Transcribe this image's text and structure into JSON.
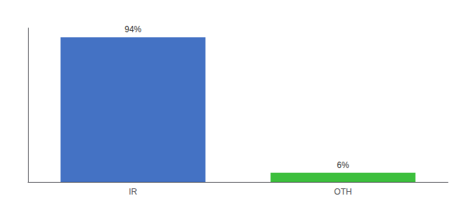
{
  "chart_data": {
    "type": "bar",
    "categories": [
      "IR",
      "OTH"
    ],
    "values": [
      94,
      6
    ],
    "value_labels": [
      "94%",
      "6%"
    ],
    "colors": [
      "#4472c4",
      "#3dbf3d"
    ],
    "ylim": [
      0,
      100
    ],
    "grid": false,
    "data_labels": true,
    "tick_labels": "x"
  }
}
